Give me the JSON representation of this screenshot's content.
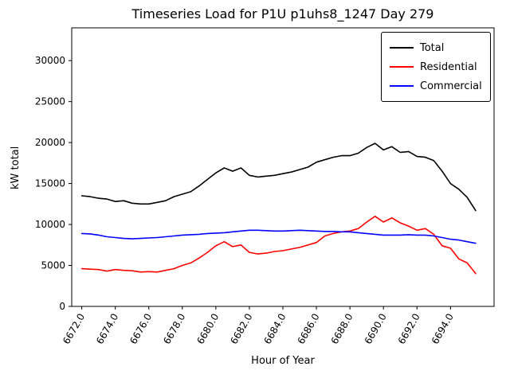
{
  "chart_data": {
    "type": "line",
    "title": "Timeseries Load for P1U p1uhs8_1247  Day 279",
    "xlabel": "Hour of Year",
    "ylabel": "kW total",
    "xlim": [
      6671.4,
      6696.6
    ],
    "ylim": [
      0,
      34000
    ],
    "xticks": [
      6672,
      6674,
      6676,
      6678,
      6680,
      6682,
      6684,
      6686,
      6688,
      6690,
      6692,
      6694
    ],
    "xtick_labels": [
      "6672.0",
      "6674.0",
      "6676.0",
      "6678.0",
      "6680.0",
      "6682.0",
      "6684.0",
      "6686.0",
      "6688.0",
      "6690.0",
      "6692.0",
      "6694.0"
    ],
    "yticks": [
      0,
      5000,
      10000,
      15000,
      20000,
      25000,
      30000
    ],
    "ytick_labels": [
      "0",
      "5000",
      "10000",
      "15000",
      "20000",
      "25000",
      "30000"
    ],
    "grid": false,
    "legend_position": "upper right",
    "x": [
      6672,
      6672.5,
      6673,
      6673.5,
      6674,
      6674.5,
      6675,
      6675.5,
      6676,
      6676.5,
      6677,
      6677.5,
      6678,
      6678.5,
      6679,
      6679.5,
      6680,
      6680.5,
      6681,
      6681.5,
      6682,
      6682.5,
      6683,
      6683.5,
      6684,
      6684.5,
      6685,
      6685.5,
      6686,
      6686.5,
      6687,
      6687.5,
      6688,
      6688.5,
      6689,
      6689.5,
      6690,
      6690.5,
      6691,
      6691.5,
      6692,
      6692.5,
      6693,
      6693.5,
      6694,
      6694.5,
      6695,
      6695.5
    ],
    "series": [
      {
        "name": "Total",
        "color": "#000000",
        "values": [
          13500,
          13400,
          13200,
          13100,
          12800,
          12900,
          12600,
          12500,
          12500,
          12700,
          12900,
          13400,
          13700,
          14000,
          14700,
          15500,
          16300,
          16900,
          16500,
          16900,
          16000,
          15800,
          15900,
          16000,
          16200,
          16400,
          16700,
          17000,
          17600,
          17900,
          18200,
          18400,
          18400,
          18700,
          19400,
          19900,
          19100,
          19500,
          18800,
          18900,
          18300,
          18200,
          17800,
          16500,
          15000,
          14300,
          13300,
          11700
        ]
      },
      {
        "name": "Residential",
        "color": "#ff0000",
        "values": [
          4600,
          4550,
          4500,
          4300,
          4500,
          4400,
          4350,
          4200,
          4250,
          4200,
          4400,
          4600,
          5000,
          5300,
          5900,
          6600,
          7400,
          7900,
          7300,
          7500,
          6600,
          6400,
          6500,
          6700,
          6800,
          7000,
          7200,
          7500,
          7800,
          8600,
          8900,
          9100,
          9200,
          9500,
          10300,
          11000,
          10300,
          10800,
          10200,
          9800,
          9300,
          9500,
          8800,
          7400,
          7100,
          5800,
          5300,
          4000
        ]
      },
      {
        "name": "Commercial",
        "color": "#0000ff",
        "values": [
          8900,
          8850,
          8700,
          8500,
          8400,
          8300,
          8250,
          8300,
          8350,
          8400,
          8500,
          8600,
          8700,
          8750,
          8800,
          8900,
          8950,
          9000,
          9100,
          9200,
          9300,
          9300,
          9250,
          9200,
          9200,
          9250,
          9300,
          9250,
          9200,
          9150,
          9150,
          9100,
          9100,
          9000,
          8900,
          8800,
          8700,
          8700,
          8700,
          8750,
          8700,
          8700,
          8600,
          8400,
          8200,
          8100,
          7900,
          7700
        ]
      }
    ]
  }
}
